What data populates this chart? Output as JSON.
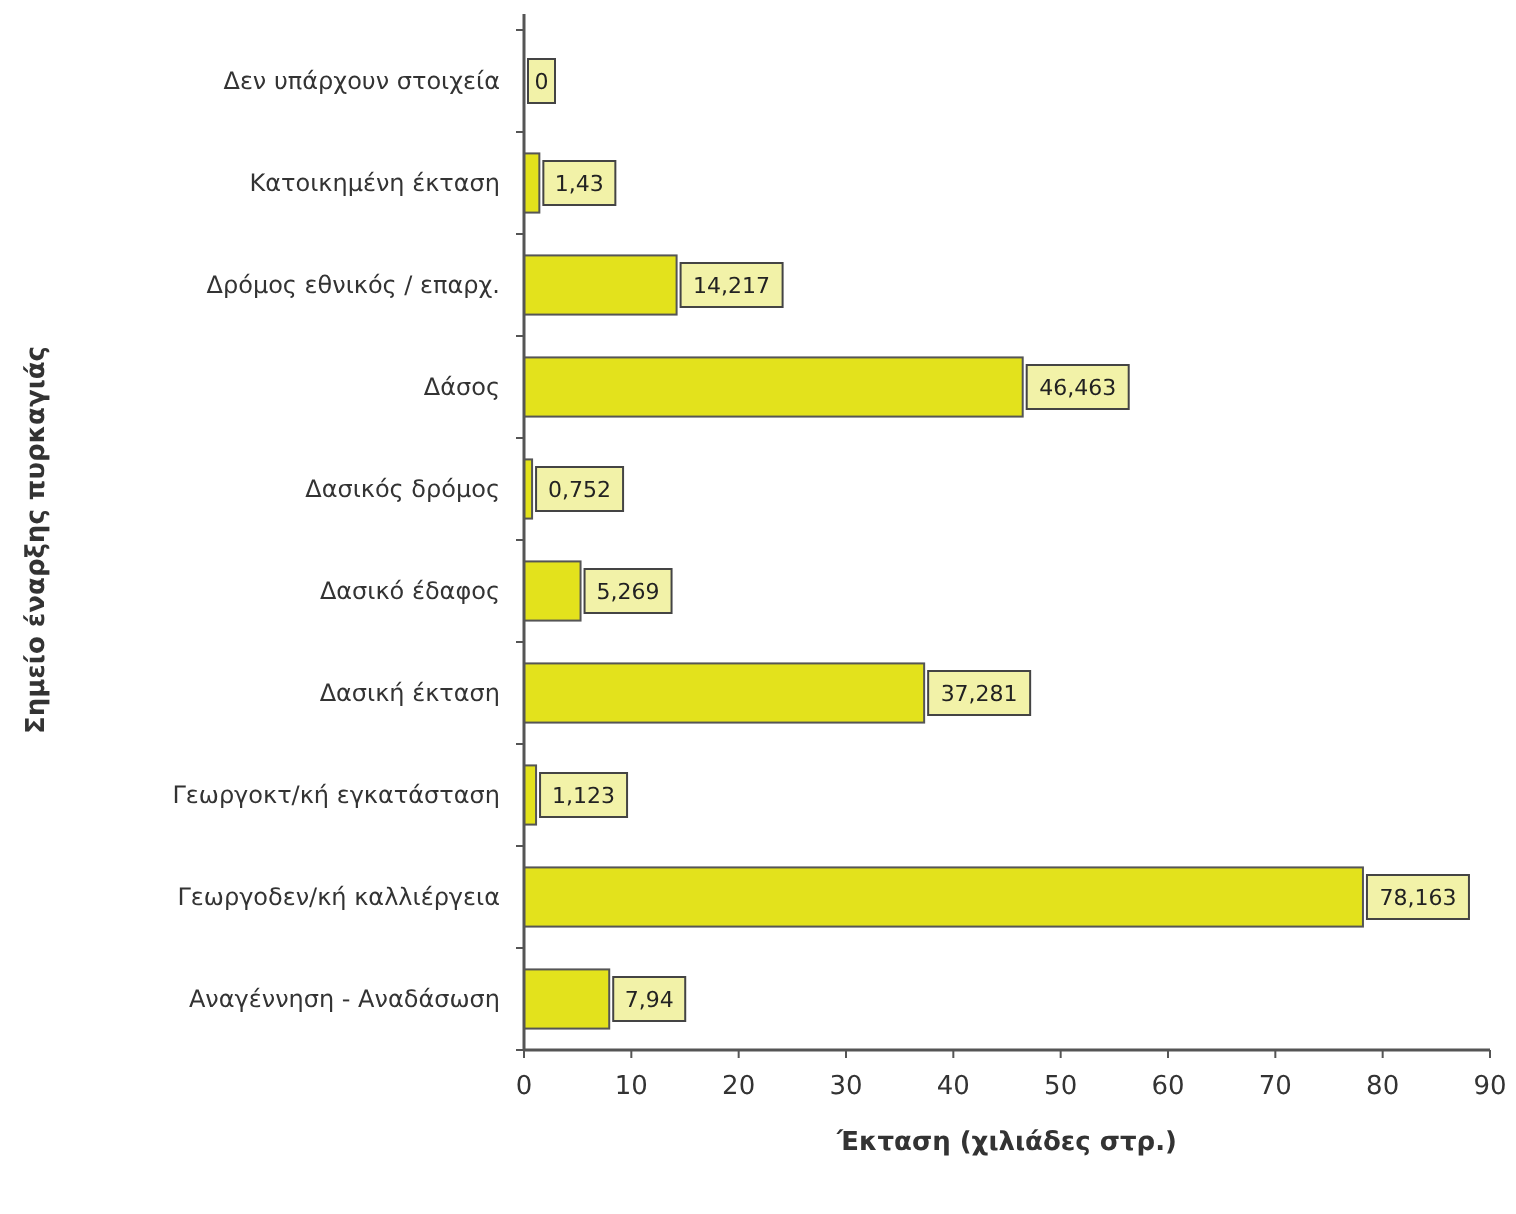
{
  "chart_data": {
    "type": "bar",
    "orientation": "horizontal",
    "xlabel": "Έκταση (χιλιάδες στρ.)",
    "ylabel": "Σημείο έναρξης πυρκαγιάς",
    "categories": [
      "Δεν υπάρχουν στοιχεία",
      "Κατοικημένη έκταση",
      "Δρόμος εθνικός / επαρχ.",
      "Δάσος",
      "Δασικός δρόμος",
      "Δασικό έδαφος",
      "Δασική έκταση",
      "Γεωργοκτ/κή εγκατάσταση",
      "Γεωργοδεν/κή καλλιέργεια",
      "Αναγέννηση - Αναδάσωση"
    ],
    "values": [
      0,
      1.43,
      14.217,
      46.463,
      0.752,
      5.269,
      37.281,
      1.123,
      78.163,
      7.94
    ],
    "value_labels": [
      "0",
      "1,43",
      "14,217",
      "46,463",
      "0,752",
      "5,269",
      "37,281",
      "1,123",
      "78,163",
      "7,94"
    ],
    "color": "#e3e21c",
    "xlim": [
      0,
      90
    ],
    "xticks": [
      0,
      10,
      20,
      30,
      40,
      50,
      60,
      70,
      80,
      90
    ],
    "grid": false
  }
}
